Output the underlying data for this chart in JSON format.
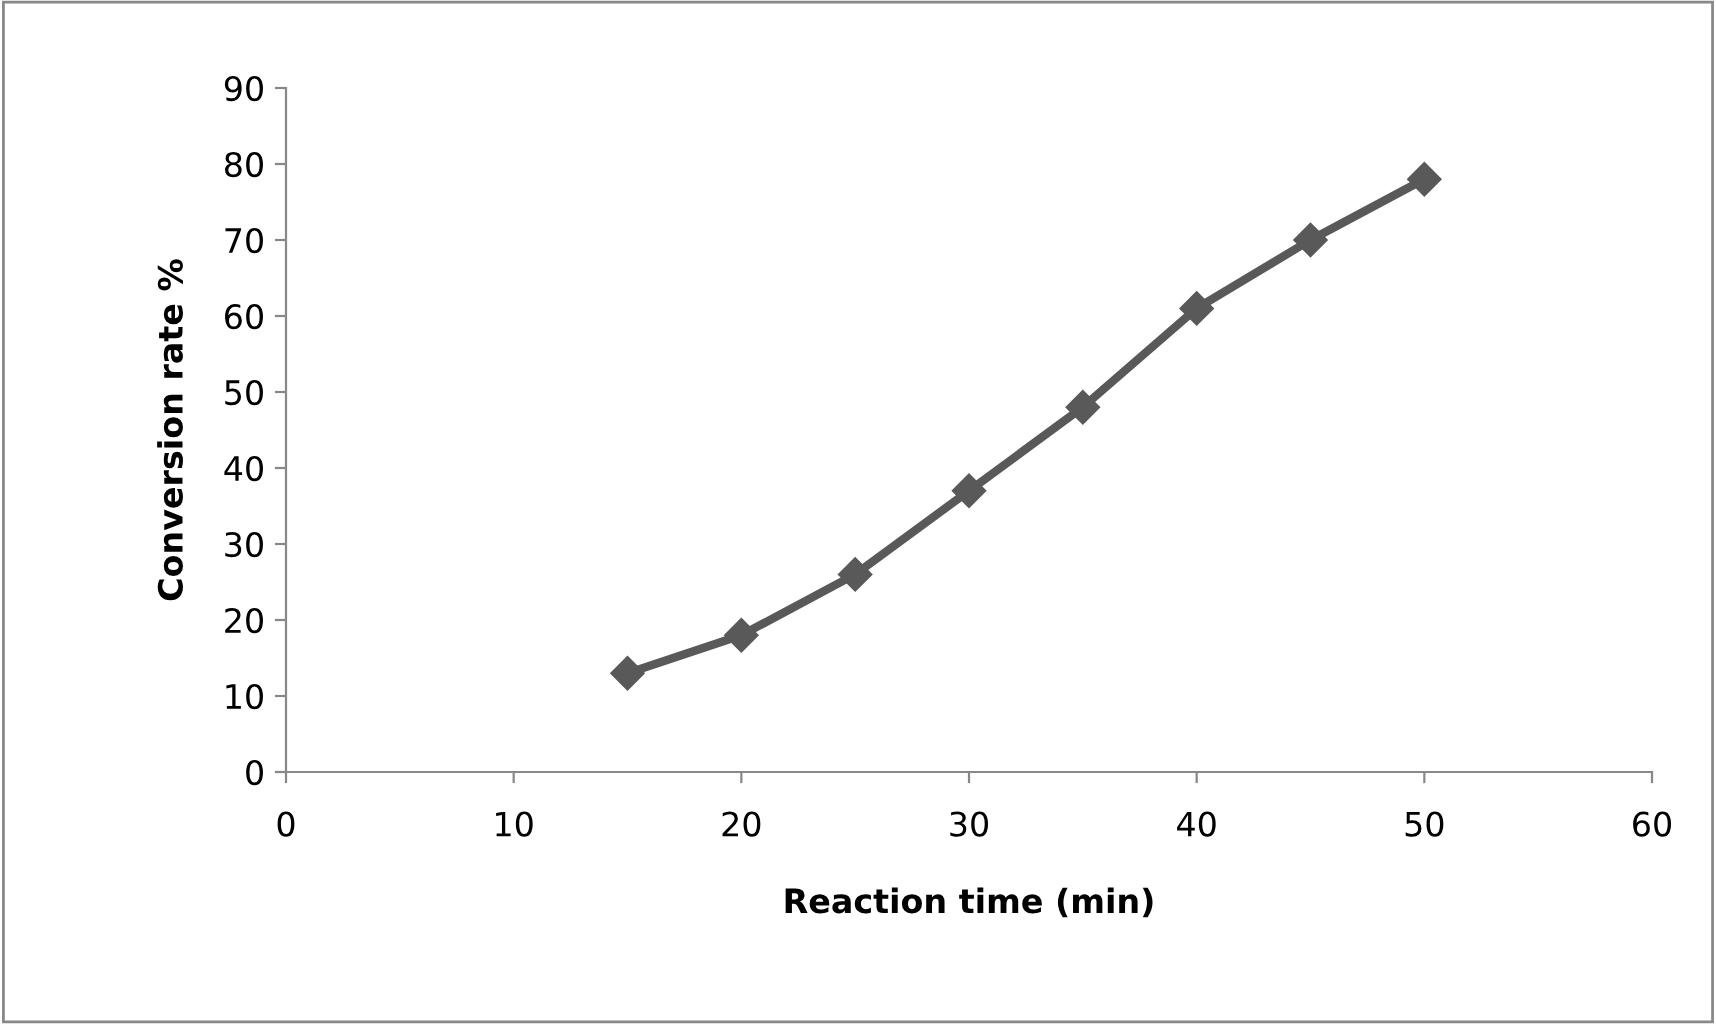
{
  "chart_data": {
    "type": "line",
    "xlabel": "Reaction time (min)",
    "ylabel": "Conversion rate %",
    "x": [
      15,
      20,
      25,
      30,
      35,
      40,
      45,
      50
    ],
    "series": [
      {
        "color": "#595959",
        "values": [
          13,
          18,
          26,
          37,
          48,
          61,
          70,
          78
        ]
      }
    ],
    "xlim": [
      0,
      60
    ],
    "xticks": [
      0,
      10,
      20,
      30,
      40,
      50,
      60
    ],
    "ylim": [
      0,
      90
    ],
    "yticks": [
      0,
      10,
      20,
      30,
      40,
      50,
      60,
      70,
      80,
      90
    ],
    "marker": "diamond",
    "line_style": "solid",
    "grid": false,
    "legend": false
  }
}
